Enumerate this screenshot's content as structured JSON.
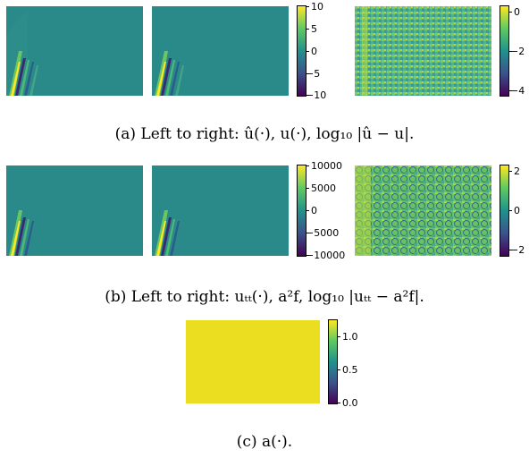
{
  "row_a": {
    "colorbar1_ticks": [
      "10",
      "5",
      "0",
      "−5",
      "−10"
    ],
    "colorbar2_ticks": [
      "0",
      "−2",
      "−4"
    ],
    "caption": "(a) Left to right: û(·), u(·), log₁₀ |û − u|."
  },
  "row_b": {
    "colorbar1_ticks": [
      "10000",
      "5000",
      "0",
      "−5000",
      "−10000"
    ],
    "colorbar2_ticks": [
      "2",
      "0",
      "−2"
    ],
    "caption": "(b) Left to right: uₜₜ(·), a²f, log₁₀ |uₜₜ − a²f|."
  },
  "row_c": {
    "colorbar_ticks": [
      "1.0",
      "0.5",
      "0.0"
    ],
    "caption": "(c) a(·)."
  },
  "colors": {
    "viridis_dark": "#440154",
    "viridis_mid": "#21918c",
    "viridis_bright": "#fde725",
    "field_background": "#2a8a8a",
    "a_field": "#ebde20"
  }
}
